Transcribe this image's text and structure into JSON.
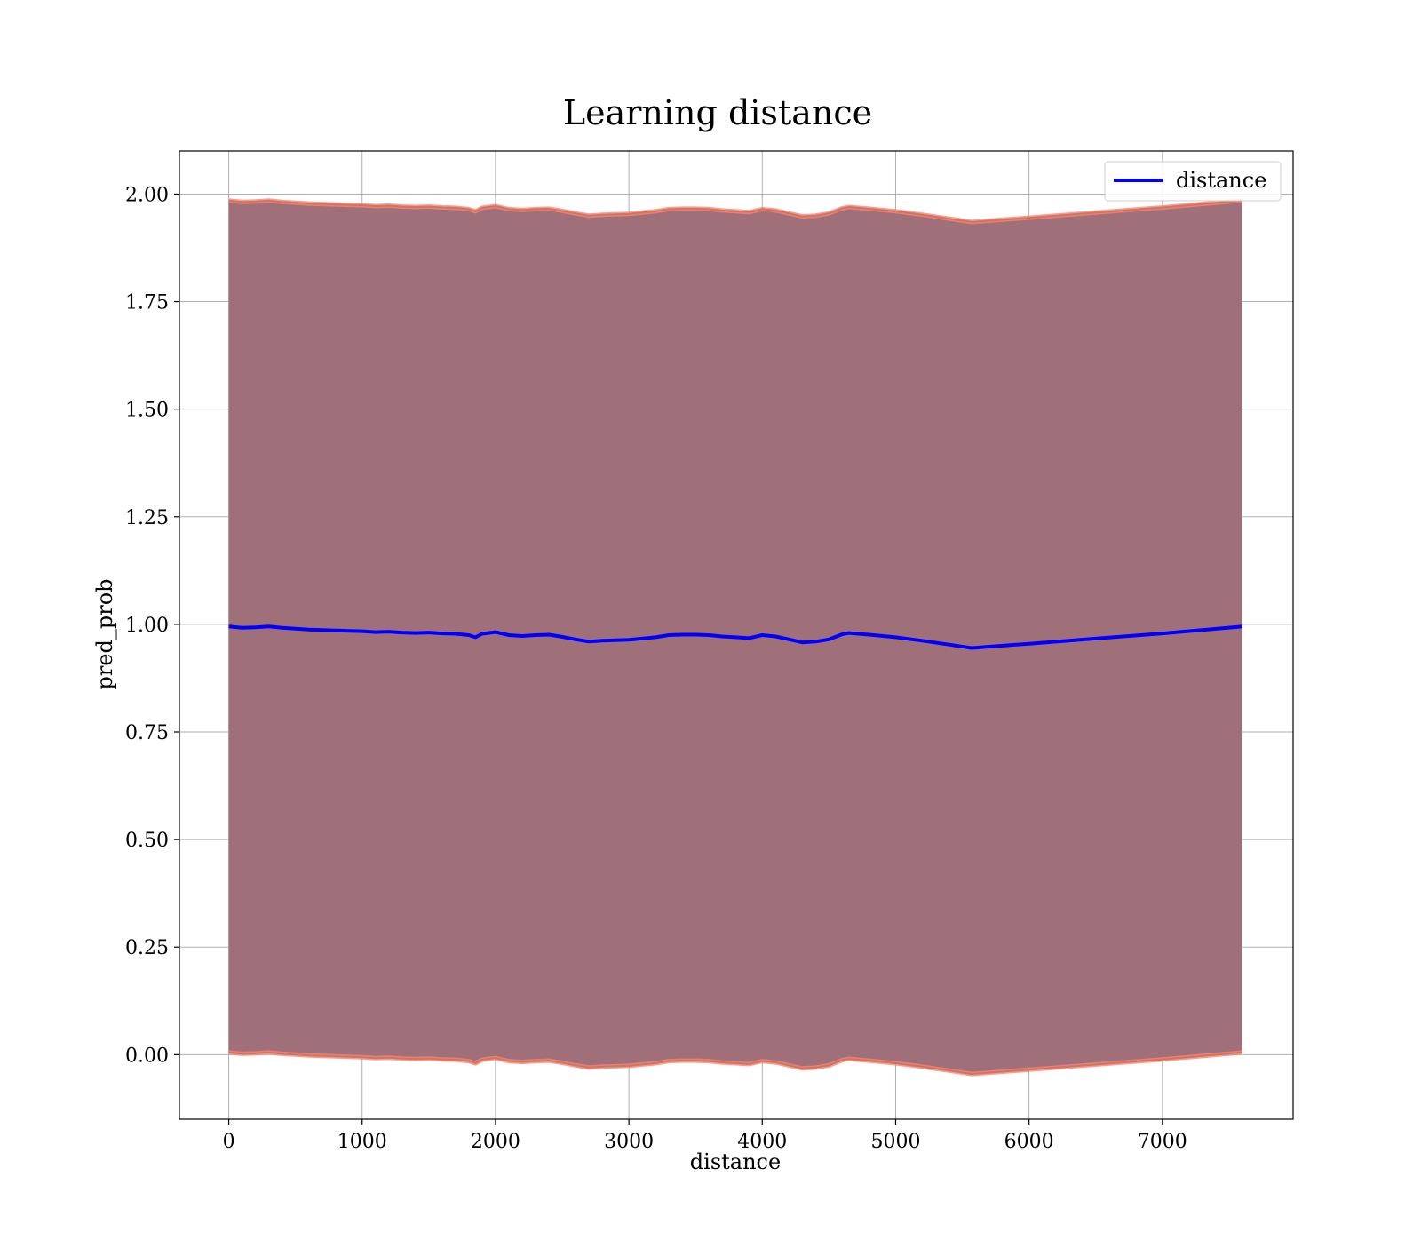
{
  "chart_data": {
    "type": "line",
    "title": "Learning distance",
    "xlabel": "distance",
    "ylabel": "pred_prob",
    "xlim": [
      -370,
      7980
    ],
    "ylim": [
      -0.15,
      2.1
    ],
    "xticks": [
      0,
      1000,
      2000,
      3000,
      4000,
      5000,
      6000,
      7000
    ],
    "xtick_labels": [
      "0",
      "1000",
      "2000",
      "3000",
      "4000",
      "5000",
      "6000",
      "7000"
    ],
    "yticks": [
      0.0,
      0.25,
      0.5,
      0.75,
      1.0,
      1.25,
      1.5,
      1.75,
      2.0
    ],
    "ytick_labels": [
      "0.00",
      "0.25",
      "0.50",
      "0.75",
      "1.00",
      "1.25",
      "1.50",
      "1.75",
      "2.00"
    ],
    "grid": true,
    "legend_position": "upper right",
    "colors": {
      "line": "#0000ff",
      "band_fill": "#a0707a",
      "band_edge_outer": "#ff8080",
      "band_edge_inner": "#c87850",
      "grid": "#b0b0b0"
    },
    "series": [
      {
        "name": "distance",
        "x": [
          0,
          100,
          200,
          300,
          400,
          500,
          600,
          700,
          800,
          900,
          1000,
          1100,
          1200,
          1300,
          1400,
          1500,
          1600,
          1700,
          1800,
          1850,
          1900,
          2000,
          2100,
          2200,
          2300,
          2400,
          2500,
          2600,
          2700,
          2800,
          2900,
          3000,
          3100,
          3200,
          3300,
          3400,
          3500,
          3600,
          3700,
          3800,
          3900,
          4000,
          4100,
          4200,
          4300,
          4400,
          4500,
          4600,
          4650,
          4800,
          5000,
          5200,
          5400,
          5570,
          6000,
          6500,
          7000,
          7600
        ],
        "y": [
          0.995,
          0.992,
          0.993,
          0.995,
          0.992,
          0.99,
          0.988,
          0.987,
          0.986,
          0.985,
          0.984,
          0.982,
          0.983,
          0.981,
          0.98,
          0.981,
          0.979,
          0.978,
          0.975,
          0.97,
          0.978,
          0.982,
          0.975,
          0.973,
          0.975,
          0.976,
          0.971,
          0.965,
          0.96,
          0.962,
          0.963,
          0.964,
          0.967,
          0.97,
          0.975,
          0.976,
          0.976,
          0.975,
          0.972,
          0.97,
          0.968,
          0.975,
          0.972,
          0.965,
          0.958,
          0.96,
          0.965,
          0.977,
          0.98,
          0.976,
          0.97,
          0.962,
          0.953,
          0.945,
          0.955,
          0.967,
          0.979,
          0.995
        ]
      }
    ],
    "band": {
      "x": [
        0,
        100,
        200,
        300,
        400,
        500,
        600,
        700,
        800,
        900,
        1000,
        1100,
        1200,
        1300,
        1400,
        1500,
        1600,
        1700,
        1800,
        1850,
        1900,
        2000,
        2100,
        2200,
        2300,
        2400,
        2500,
        2600,
        2700,
        2800,
        2900,
        3000,
        3100,
        3200,
        3300,
        3400,
        3500,
        3600,
        3700,
        3800,
        3900,
        4000,
        4100,
        4200,
        4300,
        4400,
        4500,
        4600,
        4650,
        4800,
        5000,
        5200,
        5400,
        5570,
        6000,
        6500,
        7000,
        7600
      ],
      "upper": [
        1.985,
        1.982,
        1.983,
        1.985,
        1.982,
        1.98,
        1.978,
        1.977,
        1.976,
        1.975,
        1.974,
        1.972,
        1.973,
        1.971,
        1.97,
        1.971,
        1.969,
        1.968,
        1.965,
        1.96,
        1.968,
        1.972,
        1.965,
        1.963,
        1.965,
        1.966,
        1.961,
        1.955,
        1.95,
        1.952,
        1.953,
        1.954,
        1.957,
        1.96,
        1.965,
        1.966,
        1.966,
        1.965,
        1.962,
        1.96,
        1.958,
        1.965,
        1.962,
        1.955,
        1.948,
        1.95,
        1.955,
        1.967,
        1.97,
        1.966,
        1.96,
        1.952,
        1.943,
        1.935,
        1.945,
        1.957,
        1.969,
        1.985
      ],
      "lower": [
        0.005,
        0.002,
        0.003,
        0.005,
        0.002,
        0.0,
        -0.002,
        -0.003,
        -0.004,
        -0.005,
        -0.006,
        -0.008,
        -0.007,
        -0.009,
        -0.01,
        -0.009,
        -0.011,
        -0.012,
        -0.015,
        -0.02,
        -0.012,
        -0.008,
        -0.015,
        -0.017,
        -0.015,
        -0.014,
        -0.019,
        -0.025,
        -0.03,
        -0.028,
        -0.027,
        -0.026,
        -0.023,
        -0.02,
        -0.015,
        -0.014,
        -0.014,
        -0.015,
        -0.018,
        -0.02,
        -0.022,
        -0.015,
        -0.018,
        -0.025,
        -0.032,
        -0.03,
        -0.025,
        -0.013,
        -0.01,
        -0.014,
        -0.02,
        -0.028,
        -0.037,
        -0.045,
        -0.035,
        -0.023,
        -0.011,
        0.005
      ]
    }
  }
}
